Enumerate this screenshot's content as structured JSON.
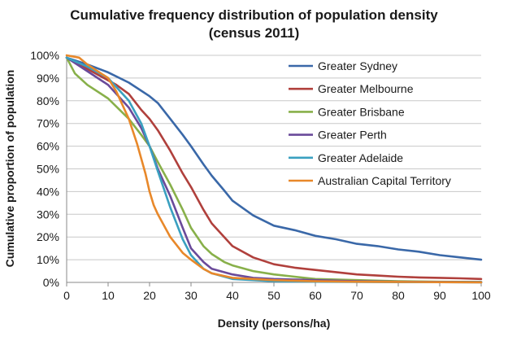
{
  "chart_data": {
    "type": "line",
    "title_lines": [
      "Cumulative frequency distribution of population density",
      "(census 2011)"
    ],
    "xlabel": "Density (persons/ha)",
    "ylabel": "Cumulative proportion of population",
    "xlim": [
      0,
      100
    ],
    "ylim": [
      0,
      100
    ],
    "x_ticks": [
      0,
      10,
      20,
      30,
      40,
      50,
      60,
      70,
      80,
      90,
      100
    ],
    "y_ticks": [
      0,
      10,
      20,
      30,
      40,
      50,
      60,
      70,
      80,
      90,
      100
    ],
    "y_tick_suffix": "%",
    "grid": "horizontal",
    "legend_position": "top-right",
    "series": [
      {
        "name": "Greater Sydney",
        "color": "#3a68a8",
        "x": [
          0,
          5,
          10,
          15,
          20,
          22,
          25,
          28,
          30,
          33,
          35,
          38,
          40,
          45,
          50,
          55,
          60,
          65,
          70,
          75,
          80,
          85,
          90,
          95,
          100
        ],
        "y": [
          99,
          96,
          92.5,
          88,
          82,
          79,
          72,
          65,
          60,
          52,
          47,
          40.5,
          36,
          29.5,
          25,
          23,
          20.5,
          19,
          17,
          16,
          14.5,
          13.5,
          12,
          11,
          10
        ]
      },
      {
        "name": "Greater Melbourne",
        "color": "#b0403c",
        "x": [
          0,
          5,
          10,
          12,
          15,
          18,
          20,
          22,
          25,
          28,
          30,
          33,
          35,
          38,
          40,
          45,
          50,
          55,
          60,
          65,
          70,
          75,
          80,
          85,
          90,
          95,
          100
        ],
        "y": [
          99,
          94,
          89,
          87,
          83,
          76,
          72,
          67,
          58,
          48,
          42,
          32,
          26,
          20,
          16,
          11,
          8,
          6.5,
          5.5,
          4.5,
          3.5,
          3,
          2.5,
          2.2,
          2,
          1.8,
          1.5
        ]
      },
      {
        "name": "Greater Brisbane",
        "color": "#88b04a",
        "x": [
          0,
          2,
          5,
          10,
          15,
          18,
          20,
          22,
          25,
          28,
          30,
          33,
          35,
          38,
          40,
          45,
          50,
          55,
          60,
          70,
          80,
          90,
          100
        ],
        "y": [
          99,
          92,
          87,
          81,
          72,
          65,
          60,
          53,
          43,
          32,
          24,
          16,
          12.5,
          9,
          7.5,
          5,
          3.5,
          2.5,
          1.5,
          1,
          0.5,
          0.3,
          0.2
        ]
      },
      {
        "name": "Greater Perth",
        "color": "#6a4a9a",
        "x": [
          0,
          5,
          10,
          15,
          18,
          20,
          22,
          25,
          28,
          30,
          33,
          35,
          40,
          45,
          50,
          60,
          70,
          80,
          90,
          100
        ],
        "y": [
          99,
          93,
          87,
          77,
          68,
          60,
          50,
          38,
          24,
          15,
          9,
          6,
          3.5,
          2,
          1.5,
          1,
          0.5,
          0.3,
          0.2,
          0.1
        ]
      },
      {
        "name": "Greater Adelaide",
        "color": "#3aa0c0",
        "x": [
          0,
          5,
          10,
          15,
          18,
          20,
          22,
          25,
          28,
          30,
          33,
          35,
          40,
          45,
          50,
          60,
          70,
          80,
          90,
          100
        ],
        "y": [
          99,
          95,
          90,
          80,
          70,
          60,
          49,
          33,
          19,
          12,
          6,
          4,
          1.5,
          1,
          0.5,
          0.3,
          0.2,
          0.1,
          0.1,
          0
        ]
      },
      {
        "name": "Australian Capital Territory",
        "color": "#e8882a",
        "x": [
          0,
          3,
          5,
          10,
          12,
          15,
          17,
          19,
          20,
          21,
          22,
          25,
          28,
          30,
          33,
          35,
          40,
          45,
          50,
          60,
          70,
          80,
          90,
          100
        ],
        "y": [
          100,
          99,
          96,
          90,
          84,
          72,
          61,
          48,
          40,
          34,
          30,
          20,
          13,
          10,
          6,
          4,
          2,
          1.5,
          1,
          0.5,
          0.3,
          0.2,
          0.1,
          0
        ]
      }
    ]
  }
}
